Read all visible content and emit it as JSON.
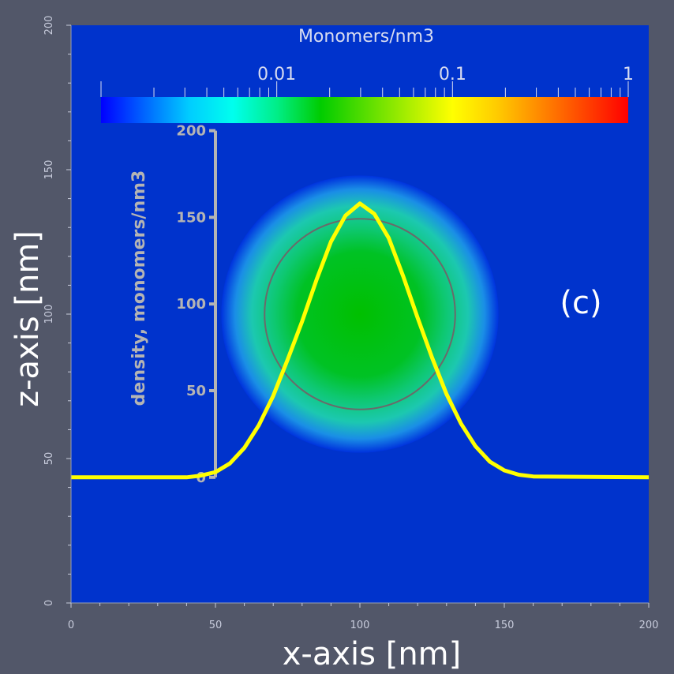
{
  "chart_data": {
    "type": "heatmap",
    "title": "",
    "panel_label": "(c)",
    "xlabel": "x-axis [nm]",
    "ylabel": "z-axis [nm]",
    "xlim": [
      0,
      200
    ],
    "ylim": [
      0,
      200
    ],
    "x_ticks": [
      0,
      50,
      100,
      150,
      200
    ],
    "y_ticks": [
      0,
      50,
      100,
      150,
      200
    ],
    "x_tick_labels": [
      "0",
      "50",
      "100",
      "150",
      "200"
    ],
    "y_tick_labels": [
      "0",
      "50",
      "100",
      "150",
      "200"
    ],
    "colorbar": {
      "title": "Monomers/nm3",
      "scale": "log",
      "range": [
        0.001,
        1
      ],
      "tick_labels": [
        "0.01",
        "0.1",
        "1"
      ],
      "tick_values": [
        0.01,
        0.1,
        1
      ],
      "colors": [
        "#0000ff",
        "#0066ff",
        "#00ccff",
        "#00ffee",
        "#00ee88",
        "#00cc00",
        "#55dd00",
        "#aaee00",
        "#ffff00",
        "#ffcc00",
        "#ff8800",
        "#ff4400",
        "#ff0000"
      ]
    },
    "background_density": 0.002,
    "density_blob": {
      "center_x": 100,
      "center_z": 100,
      "core_radius": 30,
      "halo_radius": 48,
      "core_density": 0.03,
      "halo_density": 0.012
    },
    "reference_circle": {
      "center_x": 100,
      "center_z": 100,
      "radius": 33
    },
    "profile_axis": {
      "label": "density, monomers/nm3",
      "ticks": [
        0,
        50,
        100,
        150,
        200
      ],
      "tick_labels": [
        "0",
        "50",
        "100",
        "150",
        "200"
      ],
      "x_position": 50,
      "z_min": 43.5,
      "z_max": 163.5
    },
    "series": [
      {
        "name": "density profile",
        "color": "#ffff00",
        "x": [
          0,
          40,
          45,
          50,
          55,
          60,
          65,
          70,
          75,
          80,
          85,
          90,
          95,
          100,
          105,
          110,
          115,
          120,
          125,
          130,
          135,
          140,
          145,
          150,
          155,
          160,
          200
        ],
        "density": [
          0,
          0,
          1,
          3,
          8,
          17,
          30,
          47,
          68,
          90,
          114,
          136,
          151,
          158,
          152,
          138,
          116,
          92,
          69,
          48,
          31,
          18,
          9,
          4,
          1.5,
          0.5,
          0
        ]
      }
    ]
  }
}
